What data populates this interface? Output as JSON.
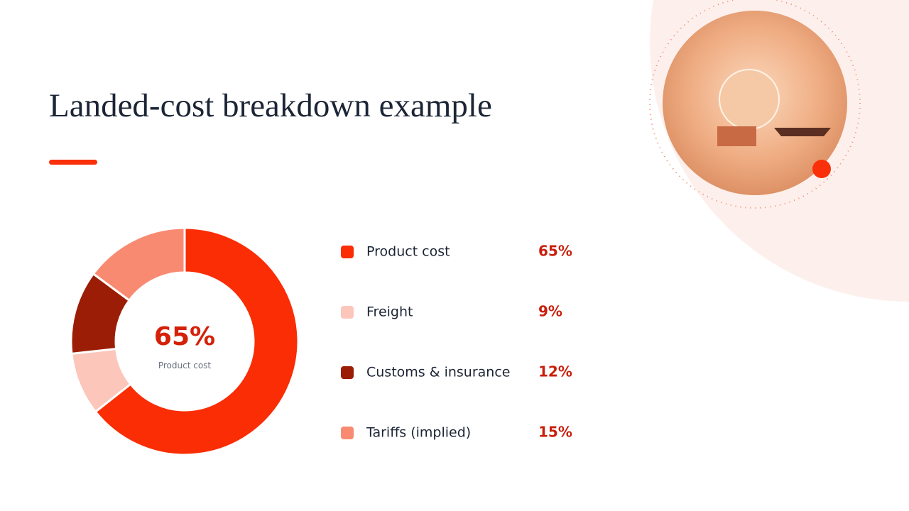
{
  "chart_data": {
    "type": "donut",
    "title": "Landed-cost breakdown example",
    "categories": [
      "Product cost",
      "Freight",
      "Customs & insurance",
      "Tariffs (implied)"
    ],
    "values": [
      65,
      9,
      12,
      15
    ],
    "value_labels": [
      "65%",
      "9%",
      "12%",
      "15%"
    ],
    "colors": [
      "#fa2d05",
      "#fcc6bb",
      "#9c1d05",
      "#f98a72"
    ]
  }
}
